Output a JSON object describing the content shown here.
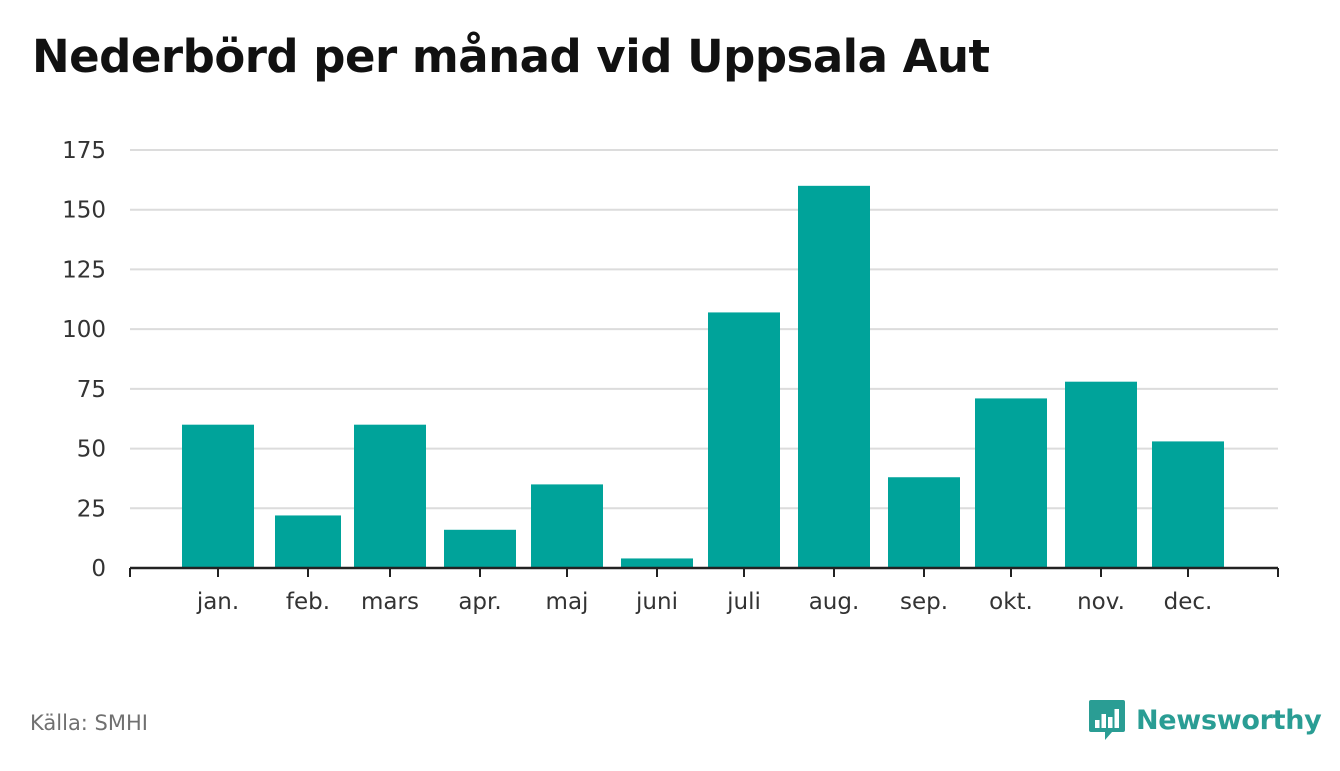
{
  "title": "Nederbörd per månad vid Uppsala Aut",
  "source": "Källa: SMHI",
  "brand": {
    "name": "Newsworthy",
    "icon": "newsworthy-logo-icon"
  },
  "colors": {
    "bar": "#00a39a",
    "grid": "#dcdcdc",
    "axis": "#222222",
    "brand": "#2a9d94"
  },
  "chart_data": {
    "type": "bar",
    "categories": [
      "jan.",
      "feb.",
      "mars",
      "apr.",
      "maj",
      "juni",
      "juli",
      "aug.",
      "sep.",
      "okt.",
      "nov.",
      "dec."
    ],
    "values": [
      60,
      22,
      60,
      16,
      35,
      4,
      107,
      160,
      38,
      71,
      78,
      53
    ],
    "yticks": [
      0,
      25,
      50,
      75,
      100,
      125,
      150,
      175
    ],
    "ylim": [
      0,
      175
    ],
    "grid": true,
    "legend": "none",
    "xlabel": "",
    "ylabel": ""
  }
}
